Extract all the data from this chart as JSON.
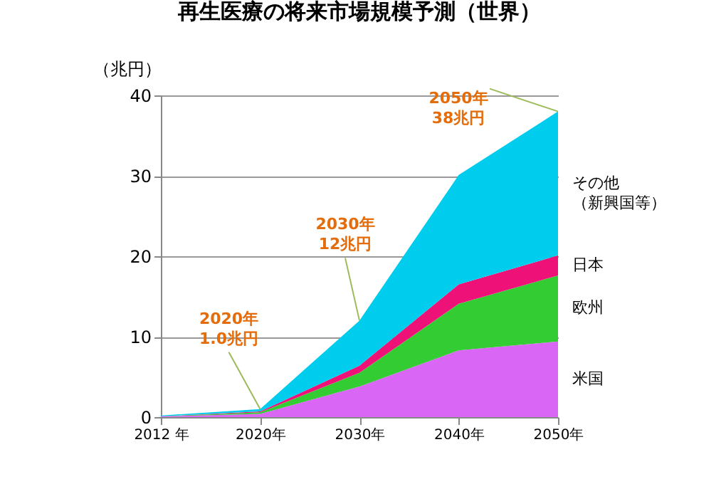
{
  "chart_data": {
    "type": "area",
    "stacked": true,
    "title": "再生医療の将来市場規模予測（世界）",
    "ylabel": "（兆円）",
    "categories": [
      "2012 年",
      "2020年",
      "2030年",
      "2040年",
      "2050年"
    ],
    "series": [
      {
        "name": "米国",
        "color": "#d966f5",
        "values": [
          0.1,
          0.4,
          3.8,
          8.3,
          9.4
        ]
      },
      {
        "name": "欧州",
        "color": "#33cc33",
        "values": [
          0,
          0.2,
          1.7,
          5.8,
          8.2
        ]
      },
      {
        "name": "日本",
        "color": "#ee1177",
        "values": [
          0,
          0.1,
          0.9,
          2.4,
          2.5
        ]
      },
      {
        "name": "その他（新興国等）",
        "color": "#00ccee",
        "values": [
          0.1,
          0.3,
          5.6,
          13.6,
          17.9
        ]
      }
    ],
    "ylim": [
      0,
      40
    ],
    "yticks": [
      0,
      10,
      20,
      30,
      40
    ],
    "grid": "y",
    "legend": false,
    "annotations": [
      {
        "text": "2020年\n1.0兆円",
        "x": "2020年",
        "y": 1.0
      },
      {
        "text": "2030年\n12兆円",
        "x": "2030年",
        "y": 12
      },
      {
        "text": "2050年\n38兆円",
        "x": "2050年",
        "y": 38
      }
    ]
  }
}
